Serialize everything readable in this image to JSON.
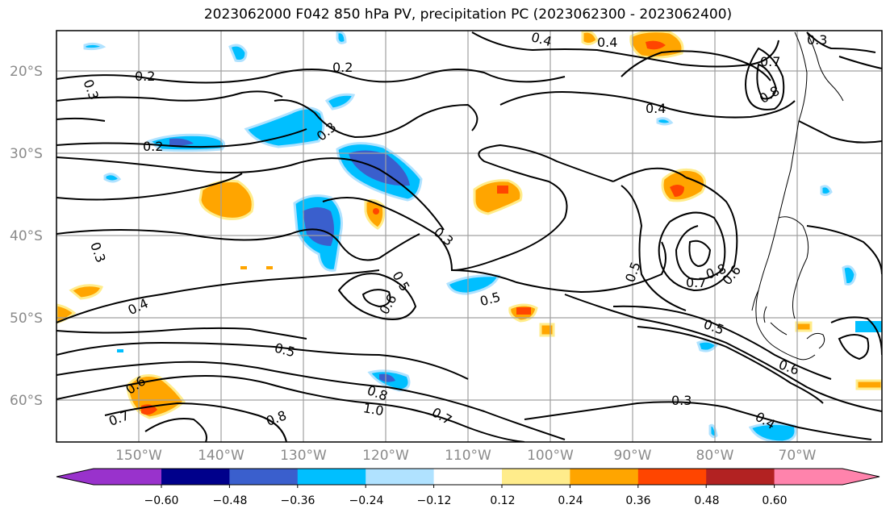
{
  "title": "2023062000 F042 850 hPa PV, precipitation PC (2023062300 - 2023062400)",
  "lat_labels": [
    "20°S",
    "30°S",
    "40°S",
    "50°S",
    "60°S"
  ],
  "lon_labels": [
    "150°W",
    "140°W",
    "130°W",
    "120°W",
    "110°W",
    "100°W",
    "90°W",
    "80°W",
    "70°W"
  ],
  "contour_labels": [
    "0.2",
    "0.3",
    "0.4",
    "0.5",
    "0.6",
    "0.7",
    "0.8",
    "1.0"
  ],
  "colorbar": {
    "tick_labels": [
      "−0.60",
      "−0.48",
      "−0.36",
      "−0.24",
      "−0.12",
      "0.12",
      "0.24",
      "0.36",
      "0.48",
      "0.60"
    ],
    "colors": [
      "#9932cc",
      "#00008b",
      "#3a5fcd",
      "#00bfff",
      "#b0e2ff",
      "#ffffff",
      "#ffec8b",
      "#ffa500",
      "#ff4500",
      "#b22222",
      "#ff83ac"
    ]
  },
  "colors": {
    "positive_fill": "#ffa500",
    "positive_core": "#ff4500",
    "positive_light": "#ffec8b",
    "negative_fill": "#00bfff",
    "negative_core": "#3a5fcd",
    "negative_light": "#b0e2ff",
    "grid": "#a0a0a0",
    "contour": "#000000"
  }
}
